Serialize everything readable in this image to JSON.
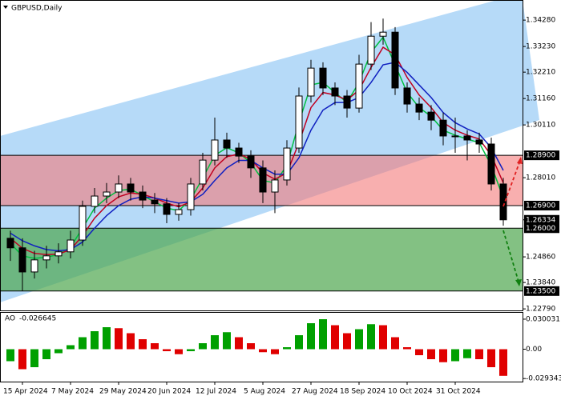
{
  "chart_data": {
    "type": "candlestick",
    "title": "GBPUSD,Daily",
    "categories": [
      null,
      "15 Apr 2024",
      null,
      null,
      null,
      "7 May 2024",
      null,
      null,
      null,
      "29 May 2024",
      null,
      null,
      null,
      "20 Jun 2024",
      null,
      null,
      null,
      "12 Jul 2024",
      null,
      null,
      null,
      "5 Aug 2024",
      null,
      null,
      null,
      "27 Aug 2024",
      null,
      null,
      null,
      "18 Sep 2024",
      null,
      null,
      null,
      "10 Oct 2024",
      null,
      null,
      null,
      "31 Oct 2024",
      null,
      null,
      null,
      null
    ],
    "open": [
      1.256,
      1.2522,
      1.2426,
      1.2474,
      1.249,
      1.2506,
      1.2553,
      1.2687,
      1.2728,
      1.2744,
      1.2776,
      1.2744,
      1.2712,
      1.2697,
      1.2655,
      1.2674,
      1.2776,
      1.2871,
      1.2951,
      1.2919,
      1.2887,
      1.284,
      1.2744,
      1.2792,
      1.2919,
      1.3126,
      1.3237,
      1.3158,
      1.3126,
      1.3078,
      1.3253,
      1.3364,
      1.338,
      1.3158,
      1.3094,
      1.3062,
      1.303,
      1.2967,
      1.2967,
      1.2951,
      1.2935,
      1.2776
    ],
    "high": [
      1.259,
      1.256,
      1.251,
      1.253,
      1.254,
      1.259,
      1.271,
      1.276,
      1.278,
      1.281,
      1.28,
      1.277,
      1.274,
      1.272,
      1.27,
      1.28,
      1.29,
      1.304,
      1.298,
      1.294,
      1.291,
      1.287,
      1.283,
      1.295,
      1.316,
      1.327,
      1.326,
      1.318,
      1.315,
      1.329,
      1.342,
      1.3434,
      1.34,
      1.318,
      1.312,
      1.309,
      1.306,
      1.304,
      1.299,
      1.298,
      1.296,
      1.28
    ],
    "low": [
      1.247,
      1.235,
      1.24,
      1.244,
      1.246,
      1.248,
      1.253,
      1.266,
      1.27,
      1.272,
      1.271,
      1.268,
      1.266,
      1.262,
      1.263,
      1.265,
      1.275,
      1.285,
      1.288,
      1.286,
      1.28,
      1.27,
      1.266,
      1.277,
      1.29,
      1.31,
      1.313,
      1.309,
      1.304,
      1.306,
      1.323,
      1.333,
      1.313,
      1.306,
      1.303,
      1.299,
      1.293,
      1.29,
      1.287,
      1.29,
      1.275,
      1.261
    ],
    "close": [
      1.2522,
      1.2426,
      1.2474,
      1.249,
      1.2506,
      1.2553,
      1.2687,
      1.2728,
      1.2744,
      1.2776,
      1.2744,
      1.2712,
      1.2697,
      1.2655,
      1.2674,
      1.2776,
      1.2871,
      1.2951,
      1.2919,
      1.2887,
      1.284,
      1.2744,
      1.2792,
      1.2919,
      1.3126,
      1.3237,
      1.3158,
      1.3126,
      1.3078,
      1.3253,
      1.3364,
      1.338,
      1.3158,
      1.3094,
      1.3062,
      1.303,
      1.2967,
      1.2967,
      1.2951,
      1.2935,
      1.2776,
      1.26334
    ],
    "ma": [
      {
        "color": "#00c040",
        "values": [
          1.254,
          1.249,
          1.248,
          1.2485,
          1.2495,
          1.2525,
          1.26,
          1.268,
          1.272,
          1.275,
          1.2755,
          1.273,
          1.2705,
          1.268,
          1.267,
          1.2715,
          1.28,
          1.289,
          1.292,
          1.29,
          1.286,
          1.279,
          1.278,
          1.285,
          1.302,
          1.317,
          1.318,
          1.314,
          1.31,
          1.318,
          1.33,
          1.336,
          1.325,
          1.314,
          1.308,
          1.3045,
          1.299,
          1.297,
          1.2955,
          1.294,
          1.285,
          1.272
        ]
      },
      {
        "color": "#c00020",
        "values": [
          1.256,
          1.252,
          1.25,
          1.2495,
          1.2497,
          1.2515,
          1.257,
          1.264,
          1.269,
          1.2725,
          1.274,
          1.2735,
          1.272,
          1.27,
          1.2685,
          1.2705,
          1.276,
          1.284,
          1.2885,
          1.2895,
          1.2875,
          1.282,
          1.2795,
          1.282,
          1.294,
          1.308,
          1.314,
          1.313,
          1.311,
          1.315,
          1.324,
          1.332,
          1.329,
          1.32,
          1.313,
          1.308,
          1.302,
          1.299,
          1.297,
          1.2955,
          1.289,
          1.278
        ]
      },
      {
        "color": "#1020c0",
        "values": [
          1.258,
          1.255,
          1.253,
          1.2515,
          1.251,
          1.2515,
          1.2545,
          1.26,
          1.265,
          1.269,
          1.2715,
          1.2725,
          1.272,
          1.271,
          1.27,
          1.2705,
          1.2735,
          1.279,
          1.284,
          1.287,
          1.287,
          1.284,
          1.2815,
          1.2815,
          1.288,
          1.299,
          1.307,
          1.31,
          1.31,
          1.312,
          1.318,
          1.325,
          1.326,
          1.322,
          1.317,
          1.312,
          1.306,
          1.302,
          1.2995,
          1.2975,
          1.292,
          1.283
        ]
      }
    ],
    "ylim": [
      1.2273,
      1.3508
    ],
    "yticks": [
      {
        "value": 1.3428,
        "label": "1.34280"
      },
      {
        "value": 1.3323,
        "label": "1.33230"
      },
      {
        "value": 1.3221,
        "label": "1.32210"
      },
      {
        "value": 1.3116,
        "label": "1.31160"
      },
      {
        "value": 1.3011,
        "label": "1.30110"
      },
      {
        "value": 1.2801,
        "label": "1.28010"
      },
      {
        "value": 1.2486,
        "label": "1.24860"
      },
      {
        "value": 1.2384,
        "label": "1.23840"
      },
      {
        "value": 1.2279,
        "label": "1.22790"
      }
    ],
    "levels": [
      {
        "value": 1.289,
        "label": "1.28900"
      },
      {
        "value": 1.269,
        "label": "1.26900"
      },
      {
        "value": 1.26,
        "label": "1.26000"
      },
      {
        "value": 1.235,
        "label": "1.23500"
      }
    ],
    "last_price": {
      "value": 1.26334,
      "label": "1.26334"
    },
    "ao": {
      "title": "AO",
      "last_value": -0.026645,
      "values": [
        -0.012,
        -0.02,
        -0.018,
        -0.01,
        -0.004,
        0.004,
        0.012,
        0.018,
        0.022,
        0.021,
        0.016,
        0.01,
        0.006,
        -0.002,
        -0.005,
        -0.002,
        0.006,
        0.014,
        0.017,
        0.012,
        0.006,
        -0.003,
        -0.005,
        0.002,
        0.014,
        0.026,
        0.03,
        0.024,
        0.016,
        0.02,
        0.025,
        0.024,
        0.012,
        0.002,
        -0.006,
        -0.01,
        -0.013,
        -0.012,
        -0.009,
        -0.01,
        -0.018,
        -0.026645
      ],
      "ylim": [
        -0.0324,
        0.0364
      ],
      "yticks": [
        0.030031,
        {
          "value": 0,
          "label": "0.00"
        },
        -0.029343
      ],
      "up_color": "#00a000",
      "down_color": "#e00000"
    }
  }
}
